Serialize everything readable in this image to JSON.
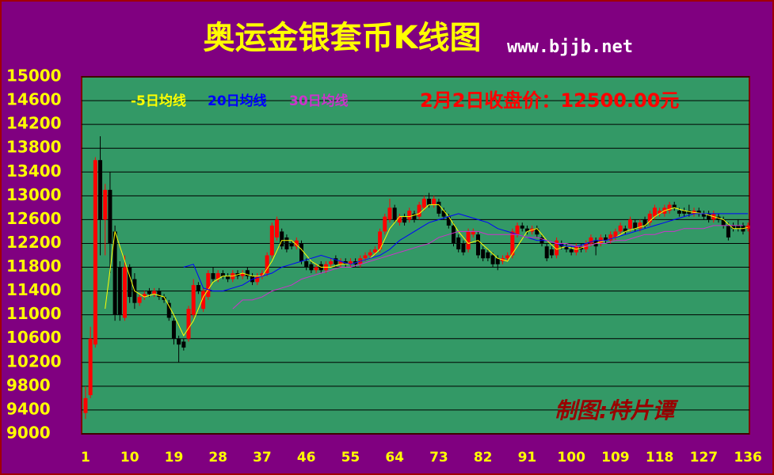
{
  "chart_data": {
    "type": "candlestick",
    "title": "奥运金银套币K线图",
    "subtitle": "www.bjjb.net",
    "annotation": "2月2日收盘价：12500.00元",
    "watermark": "制图:特片谭",
    "up_color": "#ff0000",
    "down_color": "#000000",
    "plot_color": "#339966",
    "background": "#800080",
    "grid": true,
    "ylim": [
      9000,
      15000
    ],
    "yticks": [
      9000,
      9400,
      9800,
      10200,
      10600,
      11000,
      11400,
      11800,
      12200,
      12600,
      13000,
      13400,
      13800,
      14200,
      14600,
      15000
    ],
    "xlim": [
      0.2,
      136.3
    ],
    "xticks": [
      1,
      10,
      19,
      28,
      37,
      46,
      55,
      64,
      73,
      82,
      91,
      100,
      109,
      118,
      127,
      136
    ],
    "x": [
      1,
      2,
      3,
      4,
      5,
      6,
      7,
      8,
      9,
      10,
      11,
      12,
      13,
      14,
      15,
      16,
      17,
      18,
      19,
      20,
      21,
      22,
      23,
      24,
      25,
      26,
      27,
      28,
      29,
      30,
      31,
      32,
      33,
      34,
      35,
      36,
      37,
      38,
      39,
      40,
      41,
      42,
      43,
      44,
      45,
      46,
      47,
      48,
      49,
      50,
      51,
      52,
      53,
      54,
      55,
      56,
      57,
      58,
      59,
      60,
      61,
      62,
      63,
      64,
      65,
      66,
      67,
      68,
      69,
      70,
      71,
      72,
      73,
      74,
      75,
      76,
      77,
      78,
      79,
      80,
      81,
      82,
      83,
      84,
      85,
      86,
      87,
      88,
      89,
      90,
      91,
      92,
      93,
      94,
      95,
      96,
      97,
      98,
      99,
      100,
      101,
      102,
      103,
      104,
      105,
      106,
      107,
      108,
      109,
      110,
      111,
      112,
      113,
      114,
      115,
      116,
      117,
      118,
      119,
      120,
      121,
      122,
      123,
      124,
      125,
      126,
      127,
      128,
      129,
      130,
      131,
      132,
      133,
      134,
      135,
      136
    ],
    "candles": [
      [
        9350,
        9800,
        9250,
        9600
      ],
      [
        9650,
        10800,
        9600,
        10600
      ],
      [
        10500,
        13650,
        10450,
        13600
      ],
      [
        13600,
        14000,
        12000,
        12600
      ],
      [
        12600,
        13200,
        12000,
        13100
      ],
      [
        13100,
        13400,
        11700,
        12200
      ],
      [
        12400,
        12500,
        10900,
        11000
      ],
      [
        11800,
        11900,
        10900,
        11000
      ],
      [
        10950,
        12000,
        10900,
        11800
      ],
      [
        11800,
        11850,
        11200,
        11300
      ],
      [
        11600,
        11700,
        11100,
        11200
      ],
      [
        11200,
        11350,
        11150,
        11300
      ],
      [
        11300,
        11400,
        11250,
        11350
      ],
      [
        11400,
        11450,
        11300,
        11350
      ],
      [
        11350,
        11450,
        11300,
        11400
      ],
      [
        11400,
        11450,
        11250,
        11300
      ],
      [
        11300,
        11350,
        11200,
        11250
      ],
      [
        11200,
        11250,
        10900,
        10950
      ],
      [
        10900,
        10950,
        10500,
        10600
      ],
      [
        10600,
        10650,
        10200,
        10500
      ],
      [
        10550,
        10600,
        10400,
        10450
      ],
      [
        10600,
        11150,
        10550,
        11100
      ],
      [
        11000,
        11600,
        10950,
        11500
      ],
      [
        11500,
        11550,
        11350,
        11400
      ],
      [
        11100,
        11450,
        11050,
        11400
      ],
      [
        11300,
        11750,
        11250,
        11700
      ],
      [
        11700,
        11800,
        11550,
        11600
      ],
      [
        11600,
        11750,
        11550,
        11700
      ],
      [
        11700,
        11750,
        11600,
        11650
      ],
      [
        11650,
        11700,
        11550,
        11600
      ],
      [
        11600,
        11750,
        11550,
        11700
      ],
      [
        11700,
        11750,
        11600,
        11650
      ],
      [
        11650,
        11750,
        11600,
        11700
      ],
      [
        11750,
        11800,
        11600,
        11650
      ],
      [
        11650,
        11700,
        11500,
        11550
      ],
      [
        11550,
        11700,
        11500,
        11650
      ],
      [
        11650,
        11750,
        11600,
        11700
      ],
      [
        11700,
        12050,
        11650,
        12000
      ],
      [
        12000,
        12550,
        11950,
        12500
      ],
      [
        12300,
        12650,
        12250,
        12600
      ],
      [
        12400,
        12450,
        12100,
        12150
      ],
      [
        12300,
        12350,
        12050,
        12100
      ],
      [
        12200,
        12250,
        12100,
        12150
      ],
      [
        12150,
        12300,
        12100,
        12250
      ],
      [
        12200,
        12250,
        11850,
        11900
      ],
      [
        11900,
        11950,
        11750,
        11800
      ],
      [
        11850,
        11900,
        11700,
        11750
      ],
      [
        11750,
        11850,
        11700,
        11800
      ],
      [
        11850,
        11900,
        11700,
        11750
      ],
      [
        11750,
        11900,
        11700,
        11850
      ],
      [
        11850,
        11950,
        11800,
        11900
      ],
      [
        11950,
        12000,
        11800,
        11850
      ],
      [
        11850,
        11950,
        11800,
        11900
      ],
      [
        11900,
        11950,
        11800,
        11850
      ],
      [
        11850,
        11950,
        11800,
        11900
      ],
      [
        11900,
        11950,
        11800,
        11850
      ],
      [
        11850,
        12000,
        11800,
        11950
      ],
      [
        11950,
        12050,
        11900,
        12000
      ],
      [
        12000,
        12100,
        11950,
        12050
      ],
      [
        12050,
        12150,
        12000,
        12100
      ],
      [
        12100,
        12450,
        12050,
        12400
      ],
      [
        12400,
        12700,
        12350,
        12650
      ],
      [
        12600,
        12950,
        12550,
        12800
      ],
      [
        12800,
        12850,
        12550,
        12600
      ],
      [
        12550,
        12700,
        12500,
        12650
      ],
      [
        12650,
        12700,
        12500,
        12550
      ],
      [
        12600,
        12800,
        12550,
        12750
      ],
      [
        12700,
        12750,
        12550,
        12600
      ],
      [
        12650,
        12900,
        12600,
        12850
      ],
      [
        12800,
        13000,
        12750,
        12950
      ],
      [
        12950,
        13050,
        12800,
        12850
      ],
      [
        12850,
        13000,
        12800,
        12950
      ],
      [
        12900,
        12950,
        12650,
        12700
      ],
      [
        12750,
        12800,
        12600,
        12650
      ],
      [
        12650,
        12700,
        12450,
        12500
      ],
      [
        12500,
        12550,
        12150,
        12200
      ],
      [
        12300,
        12350,
        12050,
        12100
      ],
      [
        12200,
        12250,
        12000,
        12050
      ],
      [
        12100,
        12450,
        12050,
        12400
      ],
      [
        12350,
        12450,
        12300,
        12400
      ],
      [
        12350,
        12400,
        11950,
        12000
      ],
      [
        12100,
        12150,
        11900,
        11950
      ],
      [
        12050,
        12100,
        11900,
        11950
      ],
      [
        12000,
        12050,
        11800,
        11850
      ],
      [
        11950,
        12000,
        11750,
        11850
      ],
      [
        11900,
        12000,
        11850,
        11950
      ],
      [
        11950,
        12050,
        11900,
        12000
      ],
      [
        12000,
        12450,
        11950,
        12400
      ],
      [
        12350,
        12550,
        12300,
        12500
      ],
      [
        12500,
        12550,
        12400,
        12450
      ],
      [
        12450,
        12500,
        12350,
        12400
      ],
      [
        12400,
        12500,
        12350,
        12450
      ],
      [
        12450,
        12500,
        12300,
        12350
      ],
      [
        12300,
        12350,
        12150,
        12200
      ],
      [
        12150,
        12200,
        11900,
        11950
      ],
      [
        12100,
        12150,
        11950,
        12000
      ],
      [
        12000,
        12300,
        11950,
        12250
      ],
      [
        12200,
        12250,
        12100,
        12150
      ],
      [
        12150,
        12200,
        12050,
        12100
      ],
      [
        12100,
        12150,
        12000,
        12050
      ],
      [
        12050,
        12200,
        12000,
        12150
      ],
      [
        12150,
        12200,
        12050,
        12100
      ],
      [
        12100,
        12250,
        12050,
        12200
      ],
      [
        12200,
        12350,
        12150,
        12300
      ],
      [
        12250,
        12300,
        12000,
        12150
      ],
      [
        12200,
        12350,
        12150,
        12300
      ],
      [
        12300,
        12350,
        12200,
        12250
      ],
      [
        12250,
        12400,
        12200,
        12350
      ],
      [
        12300,
        12450,
        12250,
        12400
      ],
      [
        12400,
        12550,
        12350,
        12500
      ],
      [
        12450,
        12500,
        12350,
        12400
      ],
      [
        12450,
        12650,
        12400,
        12600
      ],
      [
        12550,
        12600,
        12400,
        12450
      ],
      [
        12450,
        12600,
        12400,
        12550
      ],
      [
        12600,
        12650,
        12450,
        12500
      ],
      [
        12550,
        12750,
        12500,
        12700
      ],
      [
        12650,
        12850,
        12600,
        12800
      ],
      [
        12700,
        12800,
        12650,
        12750
      ],
      [
        12700,
        12850,
        12650,
        12800
      ],
      [
        12750,
        12900,
        12700,
        12850
      ],
      [
        12850,
        12900,
        12750,
        12800
      ],
      [
        12750,
        12800,
        12650,
        12700
      ],
      [
        12750,
        12800,
        12650,
        12700
      ],
      [
        12750,
        12850,
        12650,
        12700
      ],
      [
        12700,
        12800,
        12650,
        12750
      ],
      [
        12750,
        12800,
        12650,
        12700
      ],
      [
        12700,
        12750,
        12600,
        12650
      ],
      [
        12700,
        12750,
        12550,
        12600
      ],
      [
        12600,
        12750,
        12550,
        12700
      ],
      [
        12650,
        12700,
        12550,
        12600
      ],
      [
        12600,
        12650,
        12450,
        12500
      ],
      [
        12500,
        12550,
        12250,
        12300
      ],
      [
        12500,
        12550,
        12400,
        12450
      ],
      [
        12500,
        12600,
        12400,
        12450
      ],
      [
        12500,
        12550,
        12350,
        12400
      ],
      [
        12450,
        12550,
        12400,
        12500
      ]
    ],
    "series": [
      {
        "name": "-5日均线",
        "color": "#ffff00",
        "x": [
          5,
          7,
          9,
          11,
          13,
          15,
          17,
          19,
          21,
          23,
          25,
          27,
          29,
          31,
          33,
          35,
          37,
          39,
          41,
          43,
          45,
          47,
          49,
          51,
          53,
          55,
          57,
          59,
          61,
          63,
          65,
          67,
          69,
          71,
          73,
          75,
          77,
          79,
          81,
          83,
          85,
          87,
          89,
          91,
          93,
          95,
          97,
          99,
          101,
          103,
          105,
          107,
          109,
          111,
          113,
          115,
          117,
          119,
          121,
          123,
          125,
          127,
          129,
          131,
          133,
          135,
          136
        ],
        "values": [
          11100,
          12400,
          11900,
          11400,
          11300,
          11350,
          11300,
          11000,
          10650,
          10900,
          11300,
          11550,
          11650,
          11650,
          11700,
          11650,
          11650,
          11900,
          12250,
          12250,
          12100,
          11900,
          11800,
          11800,
          11850,
          11850,
          11900,
          11950,
          12100,
          12450,
          12650,
          12650,
          12700,
          12850,
          12850,
          12650,
          12400,
          12200,
          12250,
          12100,
          11950,
          11900,
          12150,
          12400,
          12450,
          12250,
          12100,
          12150,
          12100,
          12150,
          12200,
          12250,
          12300,
          12400,
          12450,
          12500,
          12650,
          12750,
          12800,
          12750,
          12720,
          12700,
          12650,
          12600,
          12450,
          12450,
          12470
        ]
      },
      {
        "name": "20日均线",
        "color": "#0000ff",
        "x": [
          21,
          23,
          25,
          27,
          29,
          31,
          33,
          35,
          37,
          39,
          41,
          43,
          45,
          47,
          49,
          51,
          53,
          55,
          57,
          59,
          61,
          63,
          65,
          67,
          69,
          71,
          73,
          75,
          77,
          79,
          81,
          83,
          85,
          87,
          89,
          91,
          93,
          95,
          97,
          99,
          101,
          103,
          105,
          107,
          109,
          111,
          113,
          115,
          117,
          119,
          121,
          123,
          125,
          127,
          129,
          131,
          133,
          135,
          136
        ],
        "values": [
          11800,
          11850,
          11450,
          11400,
          11400,
          11450,
          11500,
          11600,
          11650,
          11700,
          11800,
          11850,
          11900,
          11950,
          12000,
          11950,
          11900,
          11850,
          11900,
          11950,
          12000,
          12100,
          12250,
          12350,
          12450,
          12550,
          12600,
          12650,
          12700,
          12650,
          12600,
          12550,
          12450,
          12400,
          12350,
          12300,
          12250,
          12250,
          12200,
          12150,
          12150,
          12200,
          12250,
          12250,
          12300,
          12350,
          12400,
          12450,
          12500,
          12550,
          12600,
          12650,
          12700,
          12700,
          12700,
          12700,
          12700,
          12700,
          12700
        ]
      },
      {
        "name": "30日均线",
        "color": "#cc33cc",
        "x": [
          31,
          33,
          35,
          37,
          39,
          41,
          43,
          45,
          47,
          49,
          51,
          53,
          55,
          57,
          59,
          61,
          63,
          65,
          67,
          69,
          71,
          73,
          75,
          77,
          79,
          81,
          83,
          85,
          87,
          89,
          91,
          93,
          95,
          97,
          99,
          101,
          103,
          105,
          107,
          109,
          111,
          113,
          115,
          117,
          119,
          121,
          123,
          125,
          127,
          129,
          131,
          133,
          135
        ],
        "values": [
          11100,
          11250,
          11250,
          11300,
          11400,
          11450,
          11500,
          11600,
          11650,
          11700,
          11750,
          11800,
          11800,
          11850,
          11900,
          11950,
          12000,
          12050,
          12100,
          12150,
          12200,
          12300,
          12350,
          12400,
          12400,
          12400,
          12350,
          12350,
          12350,
          12350,
          12300,
          12300,
          12250,
          12200,
          12200,
          12150,
          12150,
          12200,
          12200,
          12250,
          12250,
          12300,
          12350,
          12350,
          12400,
          12400,
          12450,
          12450,
          12450,
          12500,
          12500,
          12500,
          12500
        ]
      }
    ]
  }
}
